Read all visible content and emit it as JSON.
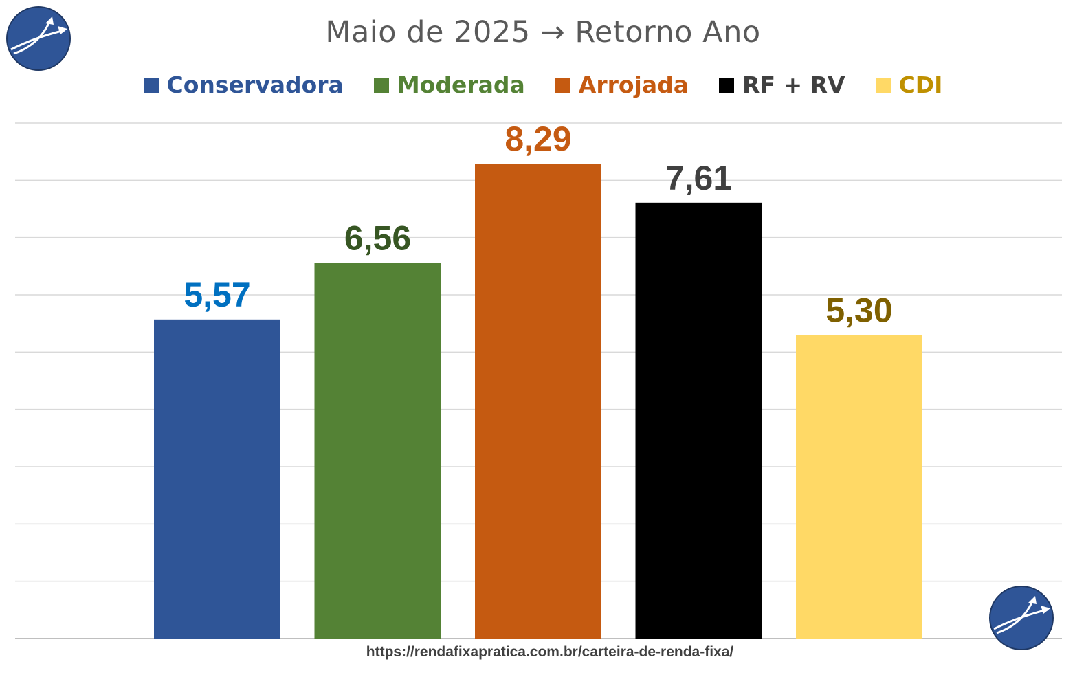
{
  "chart_data": {
    "type": "bar",
    "title": "Maio de 2025 → Retorno Ano",
    "categories": [
      "Conservadora",
      "Moderada",
      "Arrojada",
      "RF + RV",
      "CDI"
    ],
    "values": [
      5.57,
      6.56,
      8.29,
      7.61,
      5.3
    ],
    "value_labels": [
      "5,57",
      "6,56",
      "8,29",
      "7,61",
      "5,30"
    ],
    "bar_colors": [
      "#2F5597",
      "#548235",
      "#C55A11",
      "#000000",
      "#FFD966"
    ],
    "value_label_colors": [
      "#0070C0",
      "#375623",
      "#C55A11",
      "#404040",
      "#7F6000"
    ],
    "legend_text_colors": [
      "#2F5597",
      "#548235",
      "#C55A11",
      "#404040",
      "#BF9000"
    ],
    "legend_position": "top",
    "ylim": [
      0,
      9
    ],
    "y_grid_step": 1,
    "grid": true,
    "xlabel": "",
    "ylabel": ""
  },
  "footer": {
    "url": "https://rendafixapratica.com.br/carteira-de-renda-fixa/"
  },
  "logo": {
    "icon": "circle-arrow-logo-icon",
    "color": "#2F5597"
  }
}
